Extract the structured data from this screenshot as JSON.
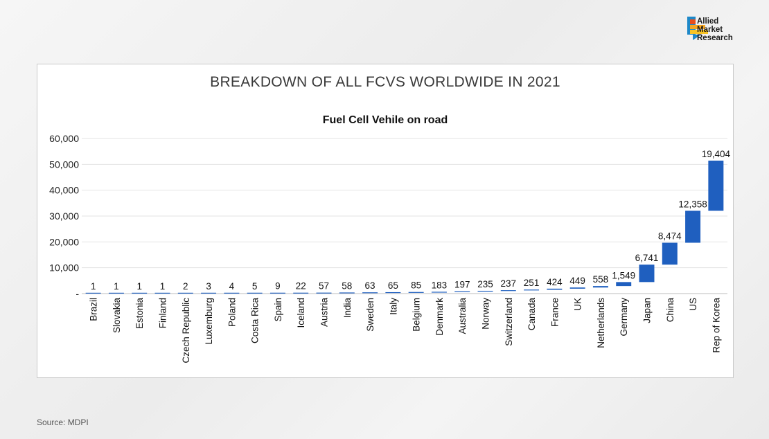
{
  "brand": {
    "lines": [
      "Allied",
      "Market",
      "Research"
    ],
    "colors": [
      "#e94e1b",
      "#f5a623",
      "#f7c325",
      "#1e88c8"
    ]
  },
  "chart_data": {
    "type": "bar",
    "subtype": "waterfall",
    "title": "BREAKDOWN OF ALL FCVS WORLDWIDE IN 2021",
    "subtitle": "Fuel Cell Vehile on road",
    "xlabel": "",
    "ylabel": "",
    "ylim": [
      0,
      60000
    ],
    "yticks": [
      0,
      10000,
      20000,
      30000,
      40000,
      50000,
      60000
    ],
    "ytick_labels": [
      "-",
      "10,000",
      "20,000",
      "30,000",
      "40,000",
      "50,000",
      "60,000"
    ],
    "categories": [
      "Brazil",
      "Slovakia",
      "Estonia",
      "Finland",
      "Czech Republic",
      "Luxemburg",
      "Poland",
      "Costa Rica",
      "Spain",
      "Iceland",
      "Austria",
      "India",
      "Sweden",
      "Italy",
      "Belgium",
      "Denmark",
      "Australia",
      "Norway",
      "Switzerland",
      "Canada",
      "France",
      "UK",
      "Netherlands",
      "Germany",
      "Japan",
      "China",
      "US",
      "Rep of Korea"
    ],
    "values": [
      1,
      1,
      1,
      1,
      2,
      3,
      4,
      5,
      9,
      22,
      57,
      58,
      63,
      65,
      85,
      183,
      197,
      235,
      237,
      251,
      424,
      449,
      558,
      1549,
      6741,
      8474,
      12358,
      19404
    ],
    "value_labels": [
      "1",
      "1",
      "1",
      "1",
      "2",
      "3",
      "4",
      "5",
      "9",
      "22",
      "57",
      "58",
      "63",
      "65",
      "85",
      "183",
      "197",
      "235",
      "237",
      "251",
      "424",
      "449",
      "558",
      "1,549",
      "6,741",
      "8,474",
      "12,358",
      "19,404"
    ],
    "bar_color": "#1f5fbf",
    "grid": true
  },
  "source": "Source: MDPI"
}
